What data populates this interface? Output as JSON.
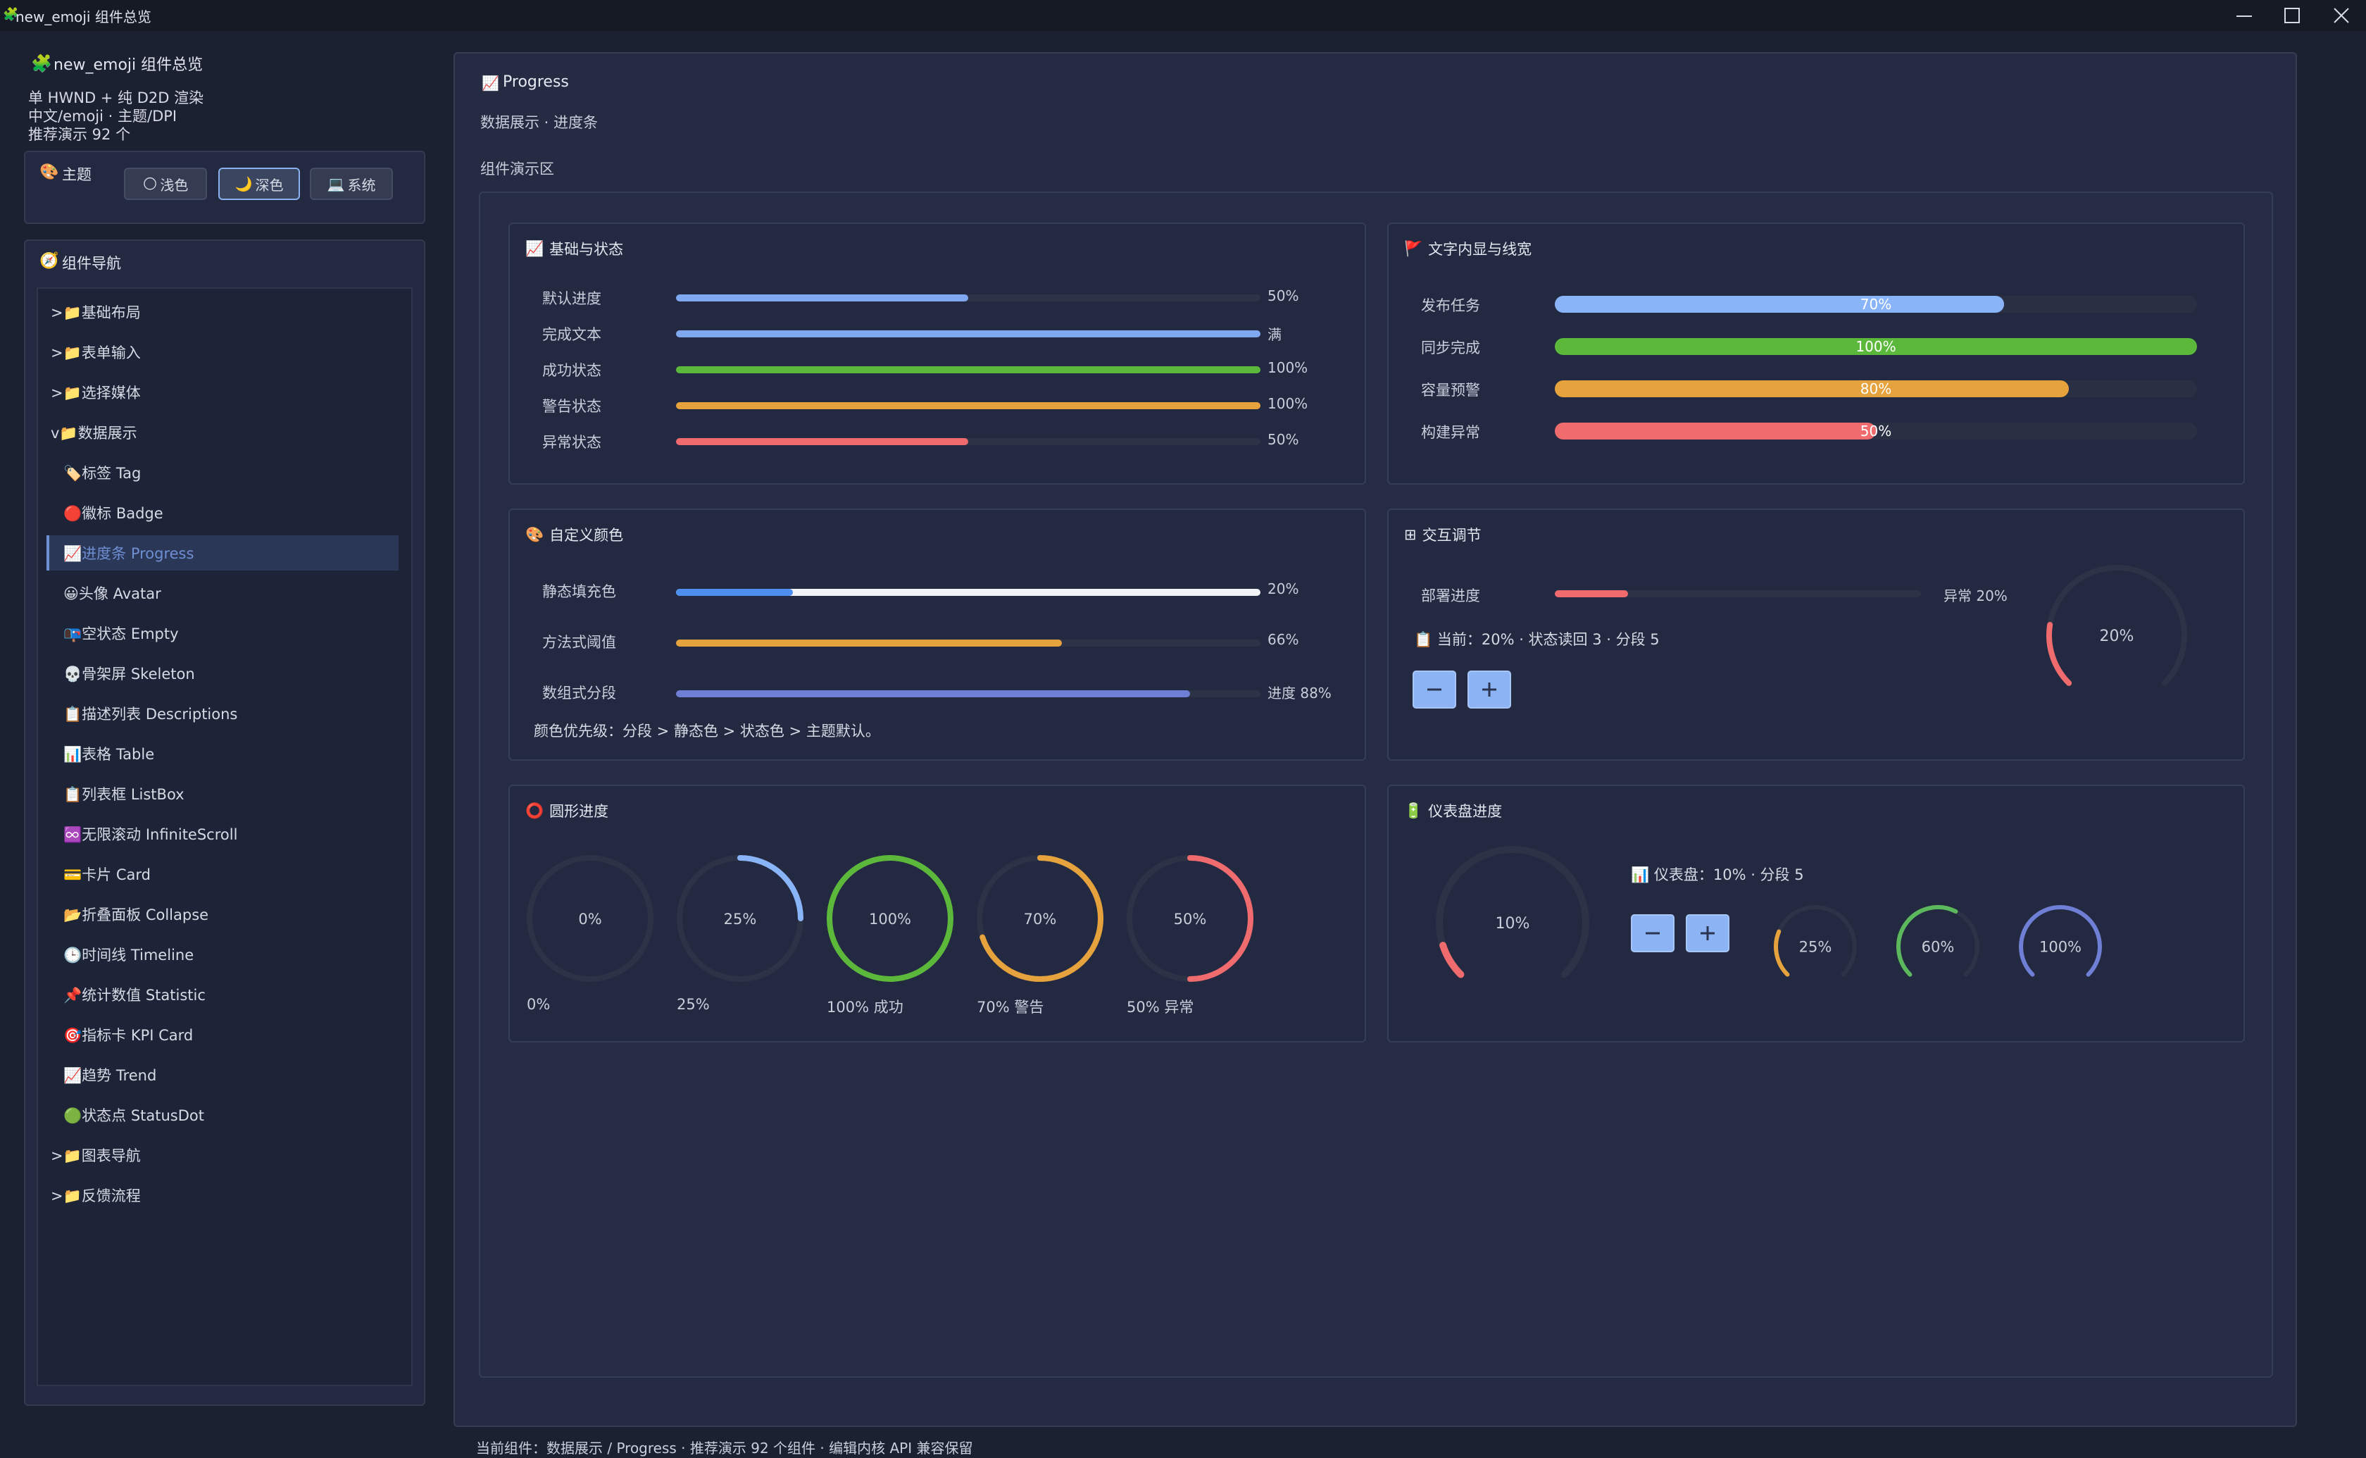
{
  "window": {
    "title": "new_emoji 组件总览",
    "icon": "puzzle-icon"
  },
  "sidebar": {
    "app_title": "new_emoji 组件总览",
    "subtitle_lines": [
      "单 HWND + 纯 D2D 渲染",
      "中文/emoji · 主题/DPI",
      "推荐演示 92 个"
    ],
    "theme": {
      "title": "主题",
      "buttons": [
        {
          "icon": "🌕",
          "label": "浅色"
        },
        {
          "icon": "🌙",
          "label": "深色"
        },
        {
          "icon": "💻",
          "label": "系统"
        }
      ],
      "active_index": 1
    },
    "nav": {
      "title": "组件导航",
      "items": [
        {
          "label": ">📁基础布局"
        },
        {
          "label": ">📁表单输入"
        },
        {
          "label": ">📁选择媒体"
        },
        {
          "label": "v📁数据展示"
        },
        {
          "label": "🏷️标签 Tag"
        },
        {
          "label": "🔴徽标 Badge"
        },
        {
          "label": "📈进度条 Progress"
        },
        {
          "label": "😀头像 Avatar"
        },
        {
          "label": "📭空状态 Empty"
        },
        {
          "label": "💀骨架屏 Skeleton"
        },
        {
          "label": "📋描述列表 Descriptions"
        },
        {
          "label": "📊表格 Table"
        },
        {
          "label": "📋列表框 ListBox"
        },
        {
          "label": "♾️无限滚动 InfiniteScroll"
        },
        {
          "label": "💳卡片 Card"
        },
        {
          "label": "📂折叠面板 Collapse"
        },
        {
          "label": "🕒时间线 Timeline"
        },
        {
          "label": "📌统计数值 Statistic"
        },
        {
          "label": "🎯指标卡 KPI Card"
        },
        {
          "label": "📈趋势 Trend"
        },
        {
          "label": "🟢状态点 StatusDot"
        },
        {
          "label": ">📁图表导航"
        },
        {
          "label": ">📁反馈流程"
        }
      ],
      "active_index": 6
    }
  },
  "main": {
    "title": "Progress",
    "subtitle": "数据展示 · 进度条",
    "demo_title": "组件演示区",
    "basic": {
      "title": "基础与状态",
      "rows": [
        {
          "label": "默认进度",
          "value": 50,
          "text": "50%",
          "color": "#7fa8f0"
        },
        {
          "label": "完成文本",
          "value": 100,
          "text": "满",
          "color": "#7fa8f0"
        },
        {
          "label": "成功状态",
          "value": 100,
          "text": "100%",
          "color": "#5cb83a"
        },
        {
          "label": "警告状态",
          "value": 100,
          "text": "100%",
          "color": "#e6a23c"
        },
        {
          "label": "异常状态",
          "value": 50,
          "text": "50%",
          "color": "#ef6b6e"
        }
      ]
    },
    "text_inside": {
      "title": "文字内显与线宽",
      "rows": [
        {
          "label": "发布任务",
          "value": 70,
          "text": "70%",
          "color": "#8ab4f8"
        },
        {
          "label": "同步完成",
          "value": 100,
          "text": "100%",
          "color": "#5cb83a"
        },
        {
          "label": "容量预警",
          "value": 80,
          "text": "80%",
          "color": "#e6a23c"
        },
        {
          "label": "构建异常",
          "value": 50,
          "text": "50%",
          "color": "#ef6b6e"
        }
      ]
    },
    "custom_color": {
      "title": "自定义颜色",
      "rows": [
        {
          "label": "静态填充色",
          "value": 20,
          "text": "20%",
          "color": "#4e8ef0"
        },
        {
          "label": "方法式阈值",
          "value": 66,
          "text": "66%",
          "color": "#e6a23c"
        },
        {
          "label": "数组式分段",
          "value": 88,
          "text": "进度 88%",
          "color": "#6f7fd6"
        }
      ],
      "note": "颜色优先级：分段 > 静态色 > 状态色 > 主题默认。"
    },
    "interactive": {
      "title": "交互调节",
      "row_label": "部署进度",
      "value": 20,
      "value_text": "异常 20%",
      "status": "当前：20% · 状态读回 3 · 分段 5",
      "ring_text": "20%",
      "color": "#ef6b6e"
    },
    "circle": {
      "title": "圆形进度",
      "items": [
        {
          "value": 0,
          "text": "0%",
          "caption": "0%",
          "color": "#8ab4f8"
        },
        {
          "value": 25,
          "text": "25%",
          "caption": "25%",
          "color": "#8ab4f8"
        },
        {
          "value": 100,
          "text": "100%",
          "caption": "100% 成功",
          "color": "#5cb83a"
        },
        {
          "value": 70,
          "text": "70%",
          "caption": "70% 警告",
          "color": "#e6a23c"
        },
        {
          "value": 50,
          "text": "50%",
          "caption": "50% 异常",
          "color": "#ef6b6e"
        }
      ]
    },
    "dashboard": {
      "title": "仪表盘进度",
      "main": {
        "value": 10,
        "text": "10%",
        "color": "#ef6b6e"
      },
      "status": "仪表盘：10% · 分段 5",
      "small": [
        {
          "value": 25,
          "text": "25%",
          "color": "#e6a23c"
        },
        {
          "value": 60,
          "text": "60%",
          "color": "#5cb85c"
        },
        {
          "value": 100,
          "text": "100%",
          "color": "#6f7fd6"
        }
      ]
    }
  },
  "statusbar": {
    "text": "当前组件：数据展示 / Progress · 推荐演示 92 个组件 · 编辑内核 API 兼容保留"
  }
}
